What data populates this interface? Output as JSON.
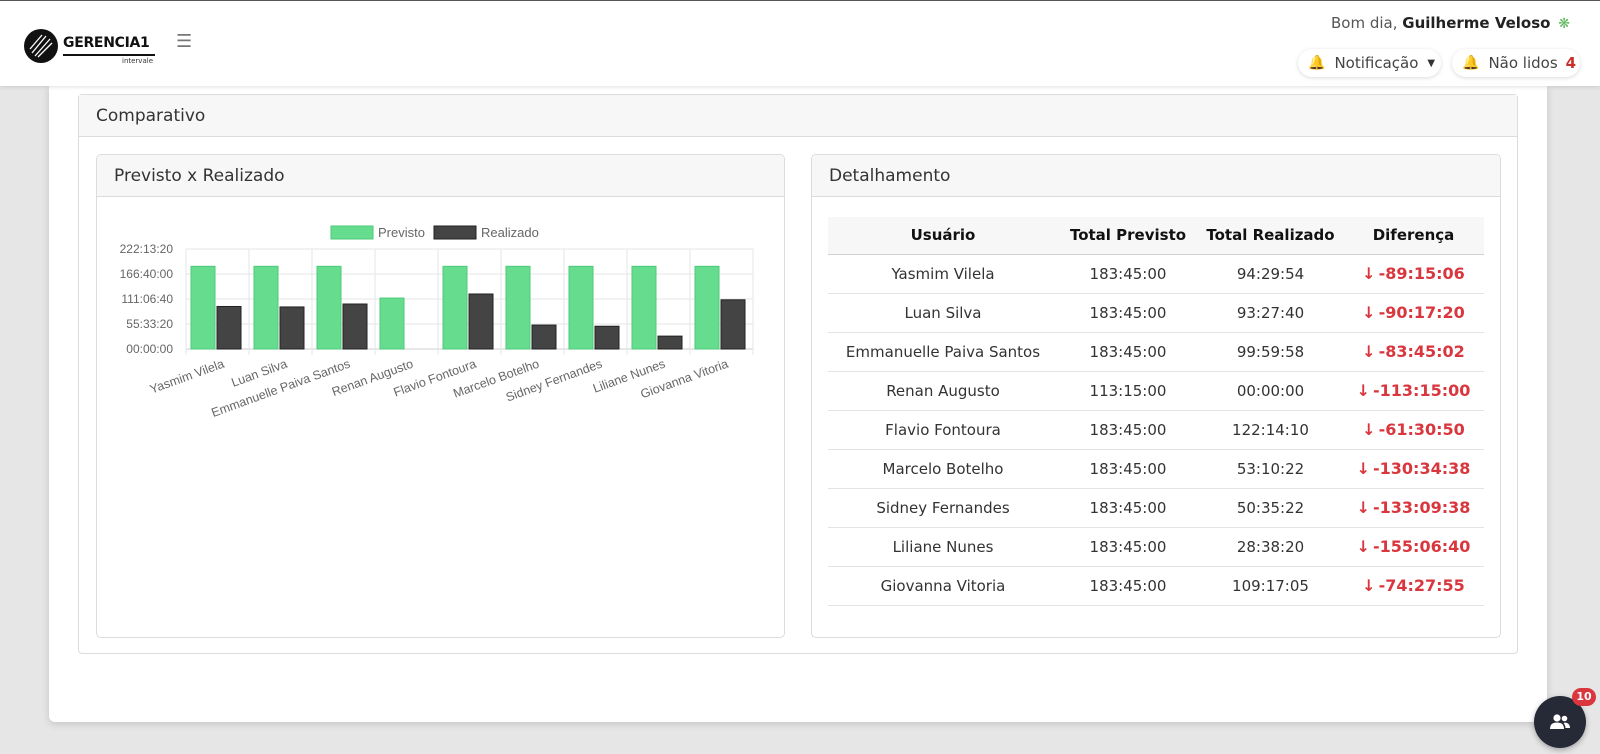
{
  "header": {
    "logo_text": "GERENCIA1",
    "logo_sub": "intervale",
    "greeting_prefix": "Bom dia,",
    "user_name": "Guilherme Veloso",
    "notification_label": "Notificação",
    "unread_label": "Não lidos",
    "unread_count": "4"
  },
  "section": {
    "title": "Comparativo"
  },
  "chart_card": {
    "title": "Previsto x Realizado"
  },
  "detail_card": {
    "title": "Detalhamento",
    "columns": [
      "Usuário",
      "Total Previsto",
      "Total Realizado",
      "Diferença"
    ],
    "rows": [
      {
        "user": "Yasmim Vilela",
        "previsto": "183:45:00",
        "realizado": "94:29:54",
        "diferenca": "-89:15:06"
      },
      {
        "user": "Luan Silva",
        "previsto": "183:45:00",
        "realizado": "93:27:40",
        "diferenca": "-90:17:20"
      },
      {
        "user": "Emmanuelle Paiva Santos",
        "previsto": "183:45:00",
        "realizado": "99:59:58",
        "diferenca": "-83:45:02"
      },
      {
        "user": "Renan Augusto",
        "previsto": "113:15:00",
        "realizado": "00:00:00",
        "diferenca": "-113:15:00"
      },
      {
        "user": "Flavio Fontoura",
        "previsto": "183:45:00",
        "realizado": "122:14:10",
        "diferenca": "-61:30:50"
      },
      {
        "user": "Marcelo Botelho",
        "previsto": "183:45:00",
        "realizado": "53:10:22",
        "diferenca": "-130:34:38"
      },
      {
        "user": "Sidney Fernandes",
        "previsto": "183:45:00",
        "realizado": "50:35:22",
        "diferenca": "-133:09:38"
      },
      {
        "user": "Liliane Nunes",
        "previsto": "183:45:00",
        "realizado": "28:38:20",
        "diferenca": "-155:06:40"
      },
      {
        "user": "Giovanna Vitoria",
        "previsto": "183:45:00",
        "realizado": "109:17:05",
        "diferenca": "-74:27:55"
      }
    ]
  },
  "fab": {
    "badge": "10"
  },
  "colors": {
    "previsto": "#66dd8e",
    "realizado": "#444444",
    "negative": "#d9363e",
    "accent": "#5cb85c",
    "bell": "#f0c000"
  },
  "chart_data": {
    "type": "bar",
    "categories": [
      "Yasmim Vilela",
      "Luan Silva",
      "Emmanuelle Paiva Santos",
      "Renan  Augusto",
      "Flavio Fontoura",
      "Marcelo Botelho",
      "Sidney Fernandes",
      "Liliane Nunes",
      "Giovanna Vitoria"
    ],
    "series": [
      {
        "name": "Previsto",
        "values": [
          "183:45:00",
          "183:45:00",
          "183:45:00",
          "113:15:00",
          "183:45:00",
          "183:45:00",
          "183:45:00",
          "183:45:00",
          "183:45:00"
        ]
      },
      {
        "name": "Realizado",
        "values": [
          "94:29:54",
          "93:27:40",
          "99:59:58",
          "00:00:00",
          "122:14:10",
          "53:10:22",
          "50:35:22",
          "28:38:20",
          "109:17:05"
        ]
      }
    ],
    "yticks": [
      "00:00:00",
      "55:33:20",
      "111:06:40",
      "166:40:00",
      "222:13:20"
    ],
    "ylim": [
      "00:00:00",
      "222:13:20"
    ],
    "legend_position": "top",
    "grid": true,
    "title": "",
    "xlabel": "",
    "ylabel": ""
  }
}
